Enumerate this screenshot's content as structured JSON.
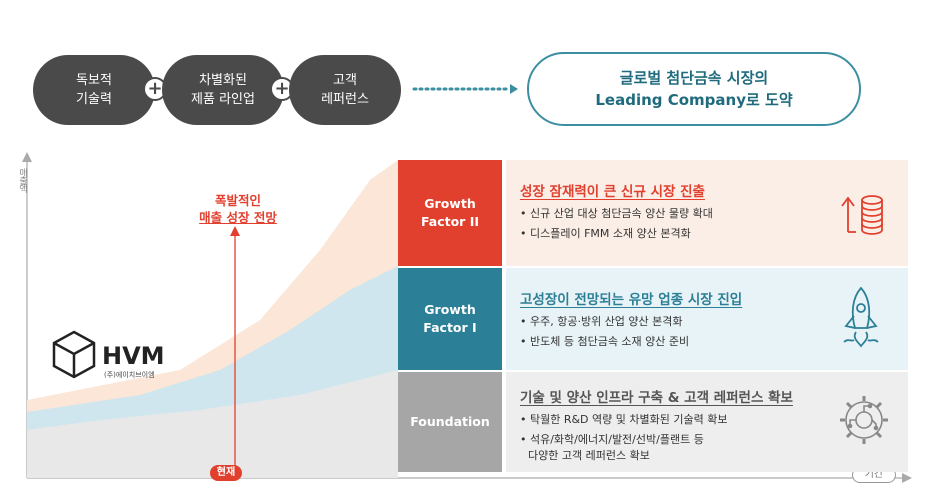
{
  "top_row": {
    "pills": [
      {
        "line1": "독보적",
        "line2": "기술력"
      },
      {
        "line1": "차별화된",
        "line2": "제품 라인업"
      },
      {
        "line1": "고객",
        "line2": "레퍼런스"
      }
    ],
    "plus_symbol": "+",
    "goal": {
      "line1": "글로벌 첨단금속 시장의",
      "line2_bold": "Leading Company",
      "line2_rest": "로 도약"
    }
  },
  "chart": {
    "y_axis_label": "매출액",
    "x_axis_label": "기간",
    "now_label": "현재",
    "burst_line1": "폭발적인",
    "burst_line2": "매출 성장 전망"
  },
  "company": {
    "name": "HVM",
    "sub": "(주)에이치브이엠"
  },
  "factors": [
    {
      "label_line1": "Growth",
      "label_line2": "Factor II",
      "color": "#e2402e",
      "panel_bg": "#fbeee6",
      "title_color": "#e2402e",
      "title": "성장 잠재력이 큰 신규 시장 진출",
      "bullets": [
        "• 신규 산업 대상 첨단금속 양산 물량 확대",
        "• 디스플레이 FMM 소재 양산 본격화"
      ],
      "icon": "growth-coins-icon"
    },
    {
      "label_line1": "Growth",
      "label_line2": "Factor I",
      "color": "#2b7f96",
      "panel_bg": "#e8f3f7",
      "title_color": "#2b7f96",
      "title": "고성장이 전망되는 유망 업종 시장 진입",
      "bullets": [
        "• 우주, 항공·방위 산업 양산 본격화",
        "• 반도체 등 첨단금속 소재 양산 준비"
      ],
      "icon": "rocket-icon"
    },
    {
      "label_line1": "Foundation",
      "label_line2": "",
      "color": "#a6a6a6",
      "panel_bg": "#eeeeee",
      "title_color": "#555555",
      "title": "기술 및 양산 인프라 구축 & 고객 레퍼런스 확보",
      "bullets": [
        "• 탁월한 R&D 역량 및 차별화된 기술력 확보",
        "• 석유/화학/에너지/발전/선박/플랜트 등",
        "다양한 고객 레퍼런스 확보"
      ],
      "icon": "gear-circuit-icon"
    }
  ]
}
